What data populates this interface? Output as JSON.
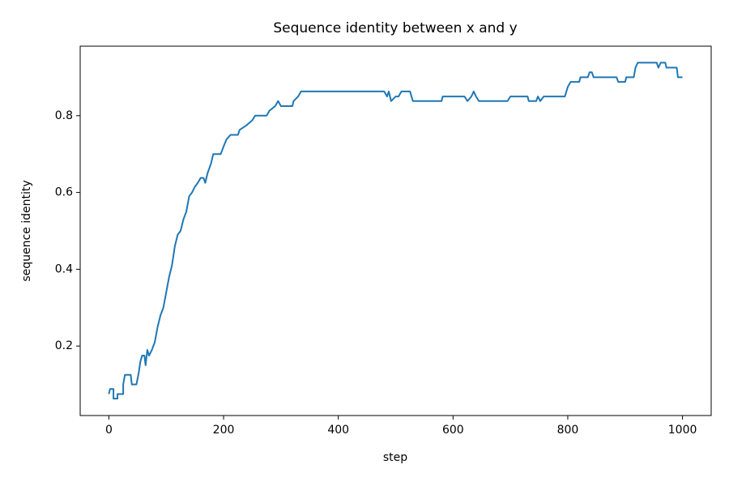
{
  "chart_data": {
    "type": "line",
    "title": "Sequence identity between x and y",
    "x_label": "step",
    "y_label": "sequence identity",
    "x": [
      0,
      2,
      8,
      8,
      15,
      15,
      25,
      25,
      28,
      38,
      40,
      48,
      52,
      55,
      58,
      62,
      64,
      67,
      70,
      75,
      80,
      85,
      90,
      95,
      100,
      105,
      110,
      115,
      120,
      125,
      130,
      135,
      140,
      145,
      150,
      155,
      160,
      165,
      168,
      172,
      178,
      182,
      195,
      200,
      205,
      212,
      225,
      228,
      240,
      250,
      255,
      275,
      280,
      290,
      295,
      300,
      320,
      322,
      330,
      335,
      480,
      485,
      488,
      492,
      500,
      505,
      510,
      525,
      530,
      580,
      582,
      620,
      625,
      632,
      636,
      640,
      645,
      695,
      700,
      730,
      732,
      745,
      748,
      752,
      758,
      795,
      800,
      805,
      820,
      822,
      835,
      838,
      842,
      845,
      885,
      888,
      900,
      902,
      915,
      918,
      922,
      955,
      958,
      962,
      970,
      972,
      990,
      992,
      1000
    ],
    "series": [
      {
        "name": "sequence identity",
        "color": "#1f77b4",
        "values": [
          0.075,
          0.088,
          0.088,
          0.063,
          0.063,
          0.075,
          0.075,
          0.1,
          0.125,
          0.125,
          0.1,
          0.1,
          0.13,
          0.16,
          0.175,
          0.175,
          0.15,
          0.19,
          0.175,
          0.19,
          0.21,
          0.25,
          0.28,
          0.3,
          0.34,
          0.38,
          0.41,
          0.46,
          0.49,
          0.5,
          0.53,
          0.55,
          0.59,
          0.6,
          0.615,
          0.625,
          0.638,
          0.638,
          0.625,
          0.65,
          0.675,
          0.7,
          0.7,
          0.72,
          0.738,
          0.75,
          0.75,
          0.763,
          0.775,
          0.788,
          0.8,
          0.8,
          0.813,
          0.825,
          0.838,
          0.825,
          0.825,
          0.838,
          0.85,
          0.863,
          0.863,
          0.85,
          0.863,
          0.838,
          0.85,
          0.85,
          0.863,
          0.863,
          0.838,
          0.838,
          0.85,
          0.85,
          0.838,
          0.85,
          0.863,
          0.85,
          0.838,
          0.838,
          0.85,
          0.85,
          0.838,
          0.838,
          0.85,
          0.838,
          0.85,
          0.85,
          0.875,
          0.888,
          0.888,
          0.9,
          0.9,
          0.913,
          0.913,
          0.9,
          0.9,
          0.888,
          0.888,
          0.9,
          0.9,
          0.925,
          0.938,
          0.938,
          0.925,
          0.938,
          0.938,
          0.925,
          0.925,
          0.9,
          0.9
        ]
      }
    ],
    "xlim": [
      -50,
      1050
    ],
    "ylim": [
      0.019,
      0.981
    ],
    "xticks": [
      0,
      200,
      400,
      600,
      800,
      1000
    ],
    "yticks": [
      0.2,
      0.4,
      0.6,
      0.8
    ],
    "grid": false
  }
}
